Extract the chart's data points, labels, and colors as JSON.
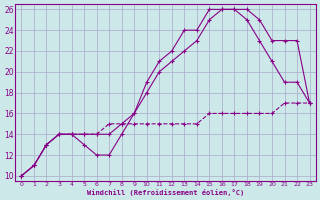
{
  "xlabel": "Windchill (Refroidissement éolien,°C)",
  "bg_color": "#cce8e8",
  "grid_color": "#aaaacc",
  "line_color": "#880088",
  "xlim": [
    -0.5,
    23.5
  ],
  "ylim": [
    9.5,
    26.5
  ],
  "xticks": [
    0,
    1,
    2,
    3,
    4,
    5,
    6,
    7,
    8,
    9,
    10,
    11,
    12,
    13,
    14,
    15,
    16,
    17,
    18,
    19,
    20,
    21,
    22,
    23
  ],
  "yticks": [
    10,
    12,
    14,
    16,
    18,
    20,
    22,
    24,
    26
  ],
  "series": [
    {
      "x": [
        0,
        1,
        2,
        3,
        4,
        5,
        6,
        7,
        8,
        9,
        10,
        11,
        12,
        13,
        14,
        15,
        16,
        17,
        18,
        19,
        20,
        21,
        22,
        23
      ],
      "y": [
        10,
        11,
        13,
        14,
        14,
        13,
        12,
        12,
        14,
        16,
        19,
        21,
        22,
        24,
        24,
        26,
        26,
        26,
        25,
        23,
        21,
        19,
        19,
        17
      ]
    },
    {
      "x": [
        0,
        1,
        2,
        3,
        4,
        5,
        6,
        7,
        8,
        9,
        10,
        11,
        12,
        13,
        14,
        15,
        16,
        17,
        18,
        19,
        20,
        21,
        22,
        23
      ],
      "y": [
        10,
        11,
        13,
        14,
        14,
        14,
        14,
        14,
        15,
        16,
        18,
        20,
        21,
        22,
        23,
        25,
        26,
        26,
        26,
        25,
        23,
        23,
        23,
        17
      ]
    },
    {
      "x": [
        0,
        1,
        2,
        3,
        4,
        5,
        6,
        7,
        8,
        9,
        10,
        11,
        12,
        13,
        14,
        15,
        16,
        17,
        18,
        19,
        20,
        21,
        22,
        23
      ],
      "y": [
        10,
        11,
        13,
        14,
        14,
        14,
        14,
        15,
        15,
        15,
        15,
        15,
        15,
        15,
        15,
        16,
        16,
        16,
        16,
        16,
        16,
        17,
        17,
        17
      ]
    }
  ]
}
